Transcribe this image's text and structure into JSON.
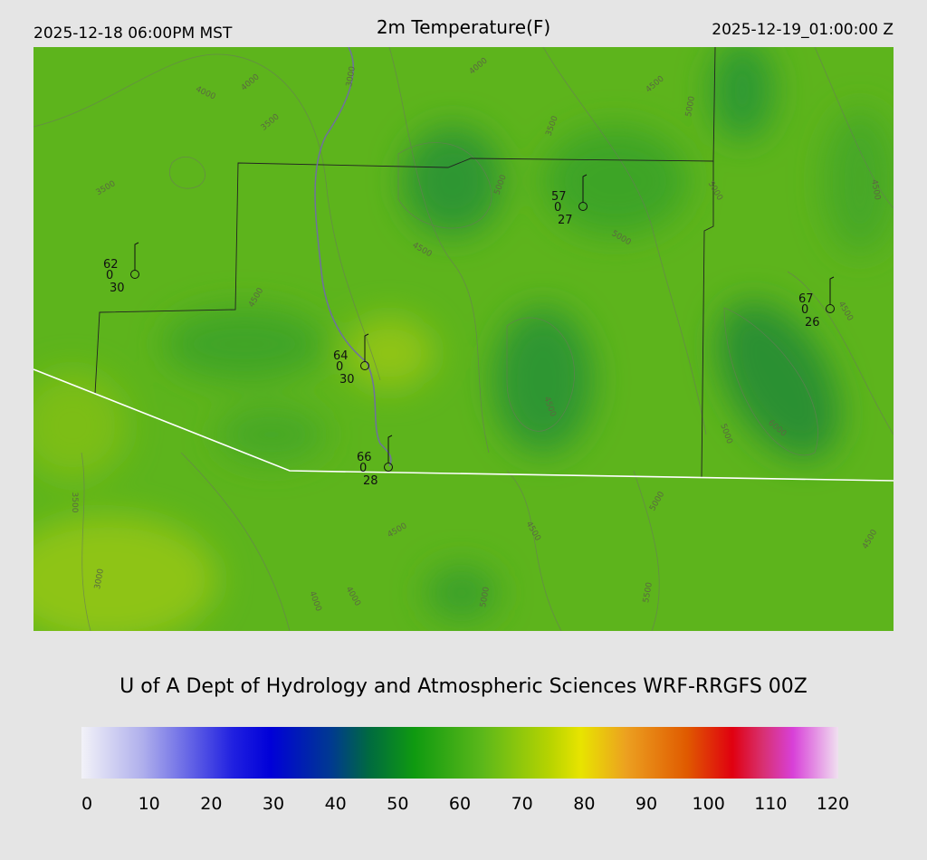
{
  "header": {
    "valid_local": "2025-12-18 06:00PM MST",
    "title": "2m Temperature(F)",
    "valid_utc": "2025-12-19_01:00:00 Z"
  },
  "stations": [
    {
      "temperature": "62",
      "middle": "0",
      "dewpoint": "30"
    },
    {
      "temperature": "57",
      "middle": "0",
      "dewpoint": "27"
    },
    {
      "temperature": "67",
      "middle": "0",
      "dewpoint": "26"
    },
    {
      "temperature": "64",
      "middle": "0",
      "dewpoint": "30"
    },
    {
      "temperature": "66",
      "middle": "0",
      "dewpoint": "28"
    }
  ],
  "contour_labels": [
    "4000",
    "4000",
    "3500",
    "3000",
    "4000",
    "4500",
    "3500",
    "3500",
    "5000",
    "4500",
    "5000",
    "4500",
    "5000",
    "5000",
    "4500",
    "4500",
    "5000",
    "6000",
    "4500",
    "3500",
    "4500",
    "4500",
    "5000",
    "4500",
    "3000",
    "4000",
    "4000",
    "5000",
    "5500"
  ],
  "credit": "U of A Dept of Hydrology and Atmospheric Sciences WRF-RRGFS 00Z",
  "colorbar": {
    "range": [
      0,
      120
    ],
    "ticks": [
      0,
      10,
      20,
      30,
      40,
      50,
      60,
      70,
      80,
      90,
      100,
      110,
      120
    ]
  }
}
